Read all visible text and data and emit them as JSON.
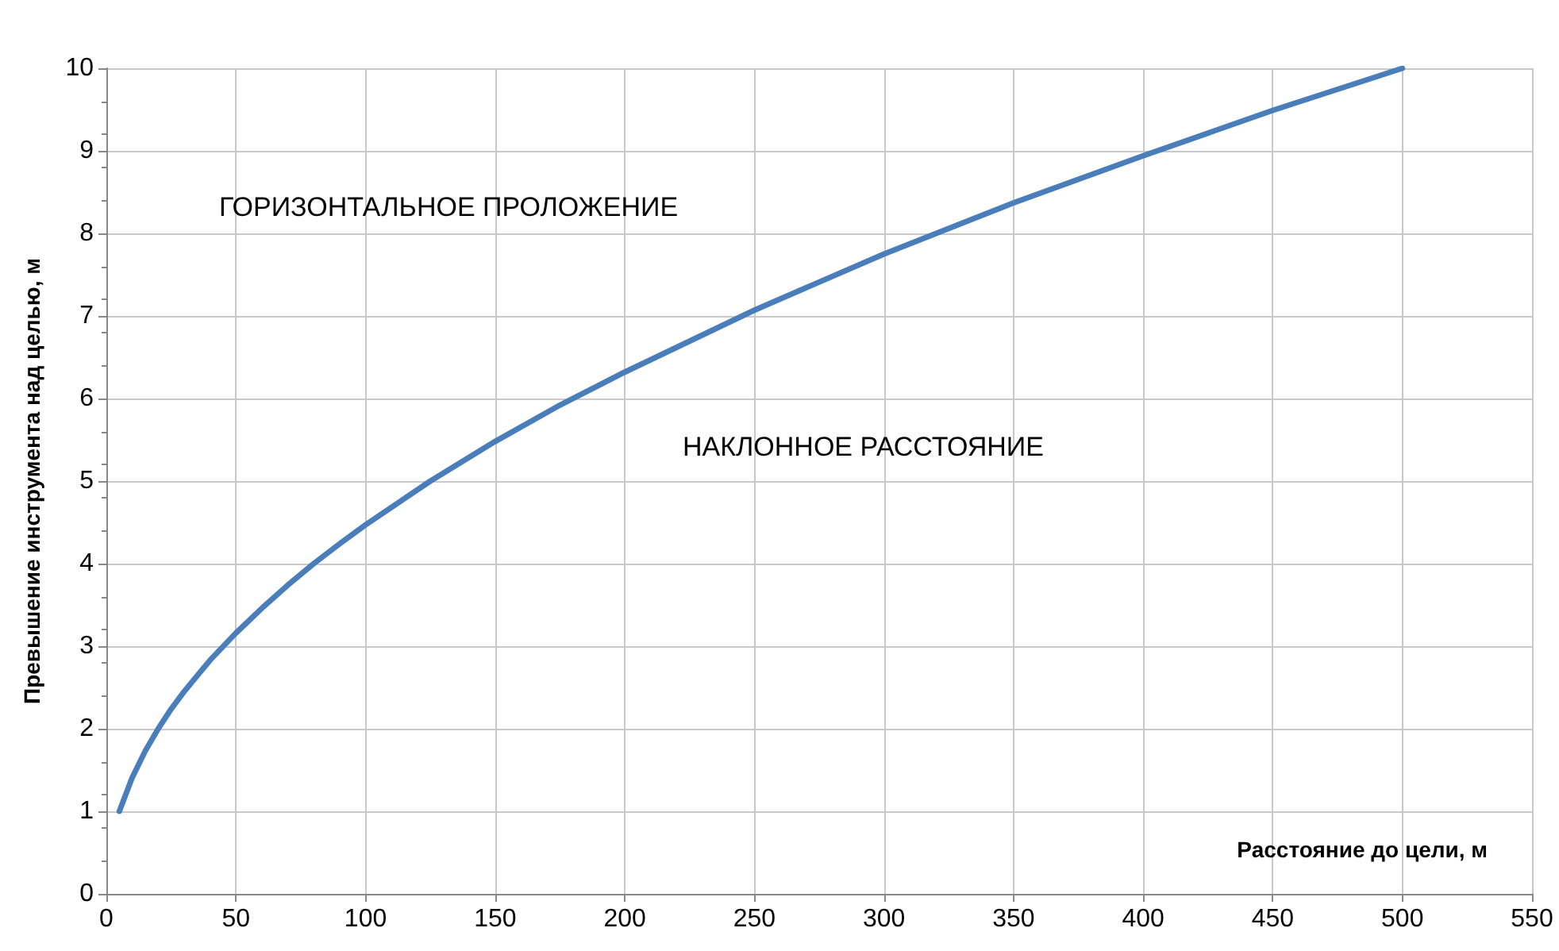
{
  "chart_data": {
    "type": "line",
    "xlabel": "Расстояние до цели, м",
    "ylabel": "Превышение инструмента над целью, м",
    "annotations": [
      "ГОРИЗОНТАЛЬНОЕ ПРОЛОЖЕНИЕ",
      "НАКЛОННОЕ РАССТОЯНИЕ"
    ],
    "x": [
      5,
      10,
      15,
      20,
      25,
      30,
      40,
      50,
      60,
      70,
      80,
      90,
      100,
      125,
      150,
      175,
      200,
      250,
      300,
      350,
      400,
      450,
      500
    ],
    "series": [
      {
        "color": "#4a7ebb",
        "values": [
          1.0,
          1.41,
          1.73,
          2.0,
          2.24,
          2.45,
          2.83,
          3.16,
          3.46,
          3.74,
          4.0,
          4.24,
          4.47,
          5.0,
          5.48,
          5.92,
          6.32,
          7.07,
          7.75,
          8.37,
          8.94,
          9.49,
          10.0
        ]
      }
    ],
    "xlim": [
      0,
      550
    ],
    "xticks": [
      0,
      50,
      100,
      150,
      200,
      250,
      300,
      350,
      400,
      450,
      500,
      550
    ],
    "ylim": [
      0,
      10
    ],
    "yticks": [
      0,
      1,
      2,
      3,
      4,
      5,
      6,
      7,
      8,
      9,
      10
    ],
    "grid": true,
    "marker": "none",
    "line_style": "solid"
  }
}
